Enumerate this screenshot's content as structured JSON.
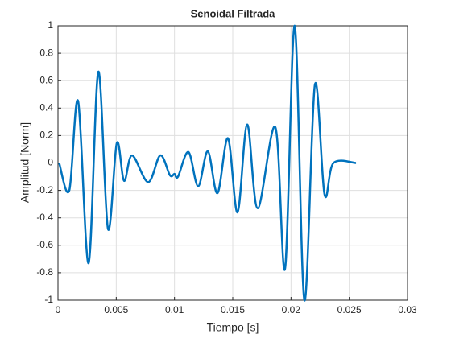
{
  "chart_data": {
    "type": "line",
    "title": "Senoidal Filtrada",
    "xlabel": "Tiempo [s]",
    "ylabel": "Amplitud [Norm]",
    "x": [
      0.0001,
      0.00097,
      0.00173,
      0.00263,
      0.00346,
      0.00429,
      0.00505,
      0.00567,
      0.00636,
      0.00774,
      0.00878,
      0.00961,
      0.01,
      0.0103,
      0.0112,
      0.01203,
      0.01286,
      0.01369,
      0.01459,
      0.01541,
      0.01624,
      0.01714,
      0.01866,
      0.01949,
      0.02032,
      0.02115,
      0.02205,
      0.02288,
      0.02364,
      0.02558
    ],
    "series": [
      {
        "name": "Senoidal",
        "color": "#0072bd",
        "values": [
          0,
          -0.2,
          0.45,
          -0.73,
          0.665,
          -0.48,
          0.145,
          -0.13,
          0.055,
          -0.14,
          0.055,
          -0.09,
          -0.08,
          -0.1,
          0.08,
          -0.17,
          0.085,
          -0.22,
          0.18,
          -0.36,
          0.28,
          -0.33,
          0.26,
          -0.77,
          1.0,
          -1.0,
          0.57,
          -0.23,
          0,
          0
        ]
      }
    ],
    "xlim": [
      0,
      0.03
    ],
    "xticks": [
      0,
      0.005,
      0.01,
      0.015,
      0.02,
      0.025,
      0.03
    ],
    "ylim": [
      -1,
      1
    ],
    "yticks": [
      -1,
      -0.8,
      -0.6,
      -0.4,
      -0.2,
      0,
      0.2,
      0.4,
      0.6,
      0.8,
      1
    ],
    "grid": true
  }
}
